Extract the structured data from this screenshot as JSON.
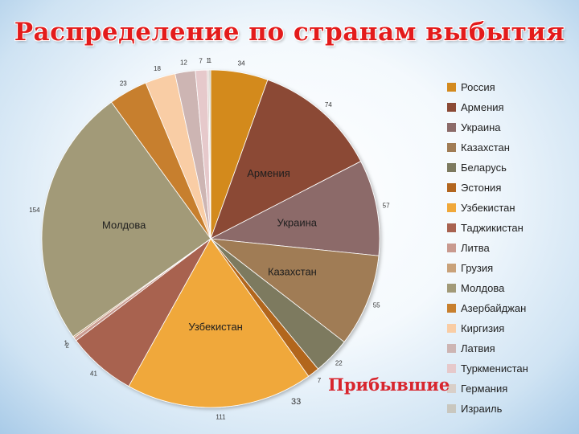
{
  "title": "Распределение по странам выбытия",
  "subtitle": "Прибывшие",
  "bottom_number": "33",
  "chart_data": {
    "type": "pie",
    "legend_position": "right",
    "slices": [
      {
        "name": "Россия",
        "value": 34,
        "value_label": "34",
        "color": "#d38a1f"
      },
      {
        "name": "Армения",
        "value": 74,
        "value_label": "74",
        "color": "#8b4a35",
        "inner_label": "Армения"
      },
      {
        "name": "Украина",
        "value": 57,
        "value_label": "57",
        "color": "#8c6b69",
        "inner_label": "Украина"
      },
      {
        "name": "Казахстан",
        "value": 55,
        "value_label": "55",
        "color": "#a07c55",
        "inner_label": "Казахстан"
      },
      {
        "name": "Беларусь",
        "value": 22,
        "value_label": "22",
        "color": "#7d7a5f"
      },
      {
        "name": "Эстония",
        "value": 7,
        "value_label": "7",
        "color": "#b2661f"
      },
      {
        "name": "Узбекистан",
        "value": 111,
        "value_label": "111",
        "color": "#f0a83a",
        "inner_label": "Узбекистан"
      },
      {
        "name": "Таджикистан",
        "value": 41,
        "value_label": "41",
        "color": "#a86250"
      },
      {
        "name": "Литва",
        "value": 2,
        "value_label": "2",
        "color": "#c99a8f"
      },
      {
        "name": "Грузия",
        "value": 1,
        "value_label": "1",
        "color": "#c9a27a"
      },
      {
        "name": "Молдова",
        "value": 154,
        "value_label": "154",
        "color": "#a29a78",
        "inner_label": "Молдова"
      },
      {
        "name": "Азербайджан",
        "value": 23,
        "value_label": "23",
        "color": "#c77f2e"
      },
      {
        "name": "Киргизия",
        "value": 18,
        "value_label": "18",
        "color": "#f9cda5"
      },
      {
        "name": "Латвия",
        "value": 12,
        "value_label": "12",
        "color": "#cdb5b3"
      },
      {
        "name": "Туркменистан",
        "value": 7,
        "value_label": "7",
        "color": "#e6c9cb"
      },
      {
        "name": "Германия",
        "value": 1,
        "value_label": "1",
        "color": "#d9cfc8"
      },
      {
        "name": "Израиль",
        "value": 1,
        "value_label": "1",
        "color": "#c9c7bf"
      }
    ]
  }
}
